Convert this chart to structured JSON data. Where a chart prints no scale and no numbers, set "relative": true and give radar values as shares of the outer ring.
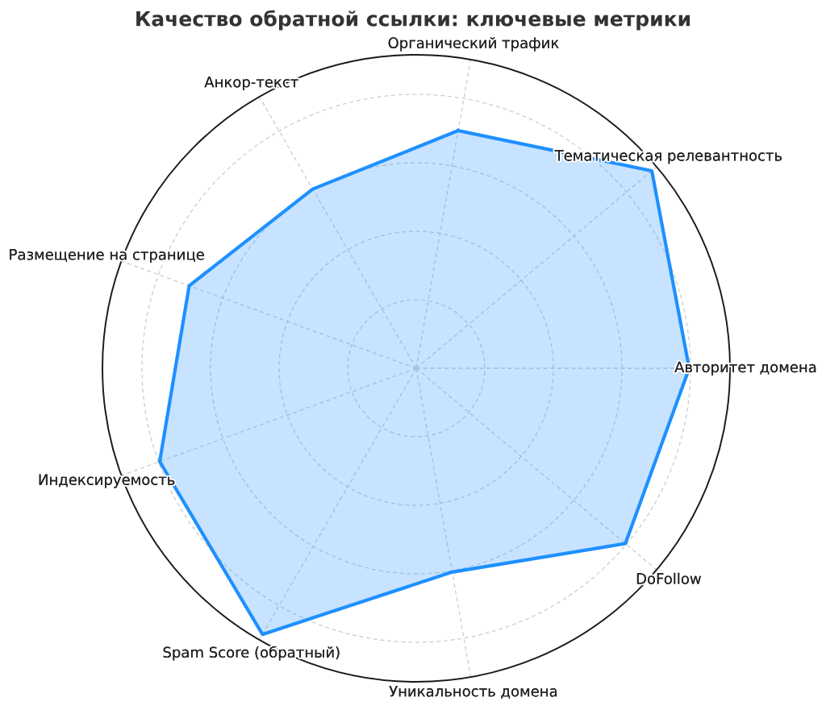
{
  "chart_data": {
    "type": "radar",
    "title": "Качество обратной ссылки: ключевые метрики",
    "categories": [
      "Органический трафик",
      "Тематическая релевантность",
      "Авторитет домена",
      "DoFollow",
      "Уникальность домена",
      "Spam Score (обратный)",
      "Индексируемость",
      "Размещение на странице",
      "Анкор-текст"
    ],
    "relative": true,
    "grid": true,
    "series": [
      {
        "color": "#1e90ff",
        "values": [
          0.77,
          0.98,
          0.87,
          0.87,
          0.66,
          0.98,
          0.87,
          0.77,
          0.66
        ]
      }
    ]
  }
}
